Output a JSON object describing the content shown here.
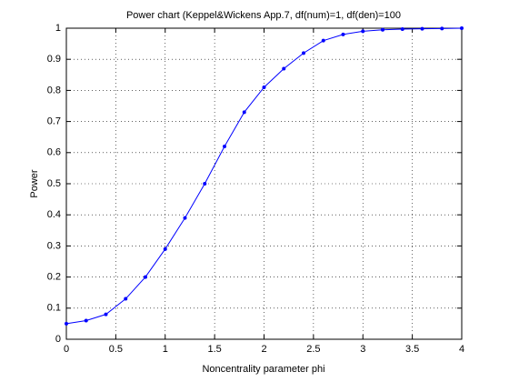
{
  "chart_data": {
    "type": "line",
    "title": "Power chart (Keppel&Wickens App.7, df(num)=1, df(den)=100",
    "xlabel": "Noncentrality parameter phi",
    "ylabel": "Power",
    "x": [
      0,
      0.2,
      0.4,
      0.6,
      0.8,
      1.0,
      1.2,
      1.4,
      1.6,
      1.8,
      2.0,
      2.2,
      2.4,
      2.6,
      2.8,
      3.0,
      3.2,
      3.4,
      3.6,
      3.8,
      4.0
    ],
    "series": [
      {
        "color": "#0000ff",
        "values": [
          0.05,
          0.06,
          0.08,
          0.13,
          0.2,
          0.29,
          0.39,
          0.5,
          0.62,
          0.73,
          0.81,
          0.87,
          0.92,
          0.96,
          0.98,
          0.99,
          0.995,
          0.997,
          0.998,
          0.999,
          1.0
        ]
      }
    ],
    "xlim": [
      0,
      4
    ],
    "xticks": [
      0,
      0.5,
      1,
      1.5,
      2,
      2.5,
      3,
      3.5,
      4
    ],
    "ylim": [
      0,
      1
    ],
    "yticks": [
      0,
      0.1,
      0.2,
      0.3,
      0.4,
      0.5,
      0.6,
      0.7,
      0.8,
      0.9,
      1
    ],
    "grid": true
  }
}
